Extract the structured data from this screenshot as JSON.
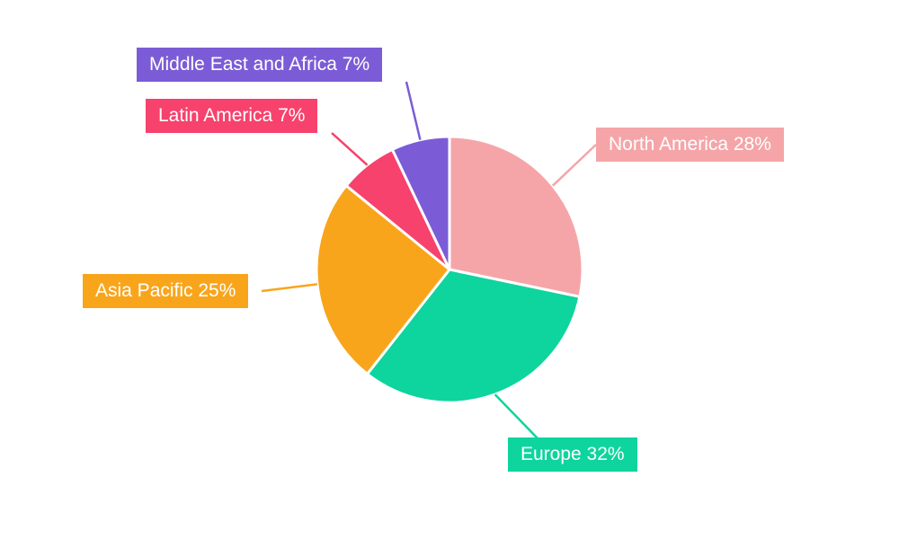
{
  "chart_data": {
    "type": "pie",
    "title": "",
    "legend_position": "callout-labels",
    "start_angle_deg": 0,
    "direction": "clockwise",
    "label_format": "{label} {value}%",
    "slices": [
      {
        "label": "North America",
        "value": 28,
        "color": "#F5A5A8",
        "callout": "North America 28%"
      },
      {
        "label": "Europe",
        "value": 32,
        "color": "#0ED49E",
        "callout": "Europe 32%"
      },
      {
        "label": "Asia Pacific",
        "value": 25,
        "color": "#F9A51C",
        "callout": "Asia Pacific 25%"
      },
      {
        "label": "Latin America",
        "value": 7,
        "color": "#F6426C",
        "callout": "Latin America 7%"
      },
      {
        "label": "Middle East and Africa",
        "value": 7,
        "color": "#7B5CD6",
        "callout": "Middle East and Africa 7%"
      }
    ]
  }
}
